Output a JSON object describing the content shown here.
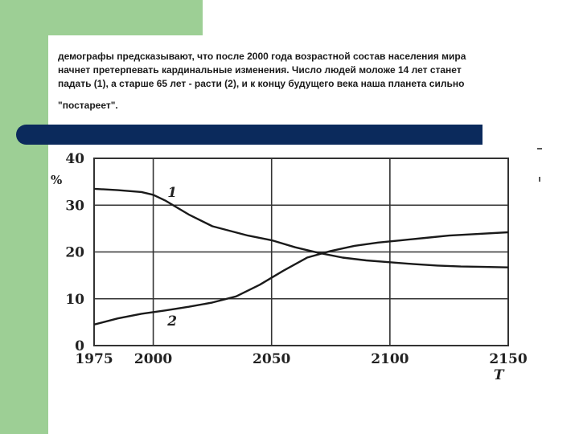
{
  "slide": {
    "text_line1": "демографы предсказывают, что после 2000 года возрастной состав населения мира",
    "text_line2": "начнет претерпевать кардинальные изменения. Число людей моложе 14 лет станет",
    "text_line3": "падать (1), а старше 65 лет - расти (2), и к концу будущего века наша планета сильно",
    "text_line4": "\"постареет\"."
  },
  "colors": {
    "green": "#9dcf95",
    "navy": "#0b2a5c"
  },
  "chart_data": {
    "type": "line",
    "title": "",
    "xlabel": "T",
    "ylabel": "%",
    "xlim": [
      1975,
      2150
    ],
    "ylim": [
      0,
      40
    ],
    "xticks": [
      1975,
      2000,
      2050,
      2100,
      2150
    ],
    "yticks": [
      0,
      10,
      20,
      30,
      40
    ],
    "x_tick_labels": [
      "1975",
      "2000",
      "2050",
      "2100",
      "2150"
    ],
    "y_tick_labels": [
      "0",
      "10",
      "20",
      "30",
      "40"
    ],
    "grid": true,
    "series": [
      {
        "name": "1",
        "x": [
          1975,
          1985,
          1995,
          2000,
          2005,
          2015,
          2025,
          2040,
          2050,
          2060,
          2070,
          2080,
          2090,
          2100,
          2110,
          2120,
          2130,
          2140,
          2150
        ],
        "values": [
          33.5,
          33.2,
          32.8,
          32.2,
          31,
          28,
          25.5,
          23.5,
          22.5,
          21,
          19.8,
          18.8,
          18.2,
          17.8,
          17.4,
          17.1,
          16.9,
          16.8,
          16.7
        ]
      },
      {
        "name": "2",
        "x": [
          1975,
          1985,
          1995,
          2005,
          2015,
          2025,
          2035,
          2045,
          2055,
          2065,
          2075,
          2085,
          2095,
          2105,
          2115,
          2125,
          2135,
          2150
        ],
        "values": [
          4.5,
          5.8,
          6.8,
          7.5,
          8.3,
          9.2,
          10.5,
          13,
          16,
          18.8,
          20.2,
          21.3,
          22,
          22.5,
          23,
          23.5,
          23.8,
          24.2
        ]
      }
    ]
  }
}
